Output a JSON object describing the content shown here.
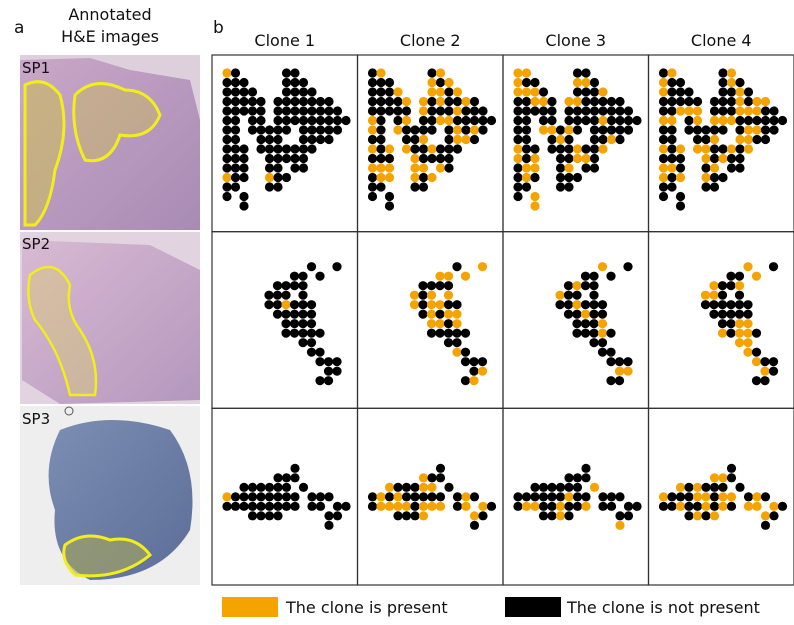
{
  "panel_a": {
    "letter": "a",
    "title": "Annotated H&E images",
    "samples": [
      "SP1",
      "SP2",
      "SP3"
    ]
  },
  "panel_b": {
    "letter": "b",
    "columns": [
      "Clone 1",
      "Clone 2",
      "Clone 3",
      "Clone 4"
    ]
  },
  "legend": {
    "present": "The clone is present",
    "absent": "The clone is not present"
  }
}
